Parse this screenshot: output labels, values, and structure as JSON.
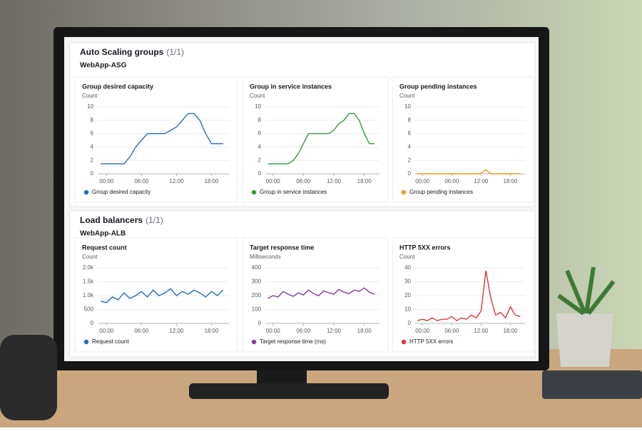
{
  "sections": [
    {
      "title": "Auto Scaling groups",
      "count": "(1/1)",
      "name": "WebApp-ASG"
    },
    {
      "title": "Load balancers",
      "count": "(1/1)",
      "name": "WebApp-ALB"
    }
  ],
  "chart_data": [
    {
      "type": "line",
      "title": "Group desired capacity",
      "y_label": "Count",
      "x": [
        -1,
        0,
        1,
        2,
        3,
        4,
        5,
        6,
        7,
        8,
        9,
        10,
        11,
        12,
        13,
        14,
        15,
        16,
        17,
        18,
        19,
        20
      ],
      "series": [
        {
          "name": "Group desired capacity",
          "color": "#1f6fc5",
          "values": [
            1.5,
            1.5,
            1.5,
            1.5,
            1.5,
            2.5,
            4,
            5,
            6,
            6,
            6,
            6,
            6.5,
            7,
            8,
            9,
            9,
            8,
            6,
            4.5,
            4.5,
            4.5
          ]
        }
      ],
      "xlim": [
        -1.5,
        21
      ],
      "xticks": [
        {
          "value": 0,
          "label": "00:00"
        },
        {
          "value": 6,
          "label": "06:00"
        },
        {
          "value": 12,
          "label": "12:00"
        },
        {
          "value": 18,
          "label": "18:00"
        }
      ],
      "ylim": [
        0,
        10
      ],
      "yticks": [
        0,
        2,
        4,
        6,
        8,
        10
      ],
      "grid": true
    },
    {
      "type": "line",
      "title": "Group in service instances",
      "y_label": "Count",
      "x": [
        -1,
        0,
        1,
        2,
        3,
        4,
        5,
        6,
        7,
        8,
        9,
        10,
        11,
        12,
        13,
        14,
        15,
        16,
        17,
        18,
        19,
        20
      ],
      "series": [
        {
          "name": "Group in service instances",
          "color": "#2e9e3e",
          "values": [
            1.5,
            1.5,
            1.5,
            1.5,
            1.5,
            2,
            3,
            4.5,
            6,
            6,
            6,
            6,
            6,
            6.5,
            7.5,
            8,
            9,
            9,
            8,
            6,
            4.5,
            4.5
          ]
        }
      ],
      "xlim": [
        -1.5,
        21
      ],
      "xticks": [
        {
          "value": 0,
          "label": "00:00"
        },
        {
          "value": 6,
          "label": "06:00"
        },
        {
          "value": 12,
          "label": "12:00"
        },
        {
          "value": 18,
          "label": "18:00"
        }
      ],
      "ylim": [
        0,
        10
      ],
      "yticks": [
        0,
        2,
        4,
        6,
        8,
        10
      ],
      "grid": true
    },
    {
      "type": "line",
      "title": "Group pending instances",
      "y_label": "Count",
      "x": [
        -1,
        0,
        1,
        2,
        3,
        4,
        5,
        6,
        7,
        8,
        9,
        10,
        11,
        12,
        13,
        14,
        15,
        16,
        17,
        18,
        19,
        20
      ],
      "series": [
        {
          "name": "Group pending instances",
          "color": "#f29b1d",
          "values": [
            0,
            0,
            0,
            0,
            0,
            0,
            0,
            0,
            0,
            0,
            0,
            0,
            0,
            0.1,
            0.6,
            0,
            0,
            0,
            0,
            0,
            0,
            0
          ]
        }
      ],
      "xlim": [
        -1.5,
        21
      ],
      "xticks": [
        {
          "value": 0,
          "label": "00:00"
        },
        {
          "value": 6,
          "label": "06:00"
        },
        {
          "value": 12,
          "label": "12:00"
        },
        {
          "value": 18,
          "label": "18:00"
        }
      ],
      "ylim": [
        0,
        10
      ],
      "yticks": [
        0,
        2,
        4,
        6,
        8,
        10
      ],
      "grid": true
    },
    {
      "type": "line",
      "title": "Request count",
      "y_label": "Count",
      "x": [
        -1,
        0,
        1,
        2,
        3,
        4,
        5,
        6,
        7,
        8,
        9,
        10,
        11,
        12,
        13,
        14,
        15,
        16,
        17,
        18,
        19,
        20
      ],
      "series": [
        {
          "name": "Request count",
          "color": "#1f6fc5",
          "values": [
            800,
            750,
            950,
            850,
            1100,
            900,
            1000,
            1150,
            950,
            1200,
            1000,
            1100,
            1250,
            1000,
            1150,
            1050,
            1200,
            1100,
            950,
            1150,
            1000,
            1200
          ]
        }
      ],
      "xlim": [
        -1.5,
        21
      ],
      "xticks": [
        {
          "value": 0,
          "label": "00:00"
        },
        {
          "value": 6,
          "label": "06:00"
        },
        {
          "value": 12,
          "label": "12:00"
        },
        {
          "value": 18,
          "label": "18:00"
        }
      ],
      "ylim": [
        0,
        2000
      ],
      "yticks": [
        0,
        500,
        {
          "value": 1000,
          "label": "1.0k"
        },
        {
          "value": 1500,
          "label": "1.5k"
        },
        {
          "value": 2000,
          "label": "2.0k"
        }
      ],
      "grid": true
    },
    {
      "type": "line",
      "title": "Target response time",
      "y_label": "Milliseconds",
      "x": [
        -1,
        0,
        1,
        2,
        3,
        4,
        5,
        6,
        7,
        8,
        9,
        10,
        11,
        12,
        13,
        14,
        15,
        16,
        17,
        18,
        19,
        20
      ],
      "series": [
        {
          "name": "Target response time (ms)",
          "color": "#7b3fa8",
          "values": [
            180,
            200,
            190,
            230,
            210,
            195,
            220,
            205,
            240,
            215,
            200,
            235,
            220,
            210,
            245,
            225,
            215,
            240,
            230,
            255,
            225,
            210
          ]
        }
      ],
      "xlim": [
        -1.5,
        21
      ],
      "xticks": [
        {
          "value": 0,
          "label": "00:00"
        },
        {
          "value": 6,
          "label": "06:00"
        },
        {
          "value": 12,
          "label": "12:00"
        },
        {
          "value": 18,
          "label": "18:00"
        }
      ],
      "ylim": [
        0,
        400
      ],
      "yticks": [
        0,
        100,
        200,
        300,
        400
      ],
      "grid": true
    },
    {
      "type": "line",
      "title": "HTTP 5XX errors",
      "y_label": "Count",
      "x": [
        -1,
        0,
        1,
        2,
        3,
        4,
        5,
        6,
        7,
        8,
        9,
        10,
        11,
        12,
        13,
        14,
        15,
        16,
        17,
        18,
        19,
        20
      ],
      "series": [
        {
          "name": "HTTP 5XX errors",
          "color": "#d93a3a",
          "values": [
            2,
            3,
            2,
            4,
            2,
            3,
            3,
            5,
            2,
            4,
            3,
            6,
            4,
            9,
            38,
            18,
            6,
            8,
            4,
            12,
            6,
            5
          ]
        }
      ],
      "xlim": [
        -1.5,
        21
      ],
      "xticks": [
        {
          "value": 0,
          "label": "00:00"
        },
        {
          "value": 6,
          "label": "06:00"
        },
        {
          "value": 12,
          "label": "12:00"
        },
        {
          "value": 18,
          "label": "18:00"
        }
      ],
      "ylim": [
        0,
        40
      ],
      "yticks": [
        0,
        10,
        20,
        30,
        40
      ],
      "grid": true
    }
  ]
}
